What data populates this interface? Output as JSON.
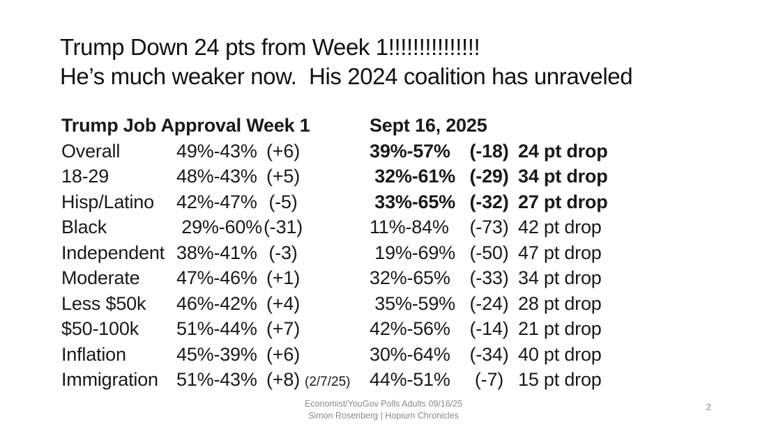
{
  "slide": {
    "title": {
      "line1": "Trump Down 24 pts from Week 1!!!!!!!!!!!!!!!",
      "line2": "He’s much weaker now.  His 2024 coalition has unraveled"
    },
    "table": {
      "left_header": "Trump Job Approval Week 1",
      "right_header": "Sept 16, 2025",
      "rows": [
        {
          "label": "Overall",
          "week1": "49%-43%",
          "week1_margin": "(+6)",
          "note": "",
          "sept": "39%-57%",
          "sept_margin": "(-18)",
          "drop": "24 pt drop",
          "emphasis": true
        },
        {
          "label": "18-29",
          "week1": "48%-43%",
          "week1_margin": "(+5)",
          "note": "",
          "sept": " 32%-61%",
          "sept_margin": "(-29)",
          "drop": "34 pt drop",
          "emphasis": true
        },
        {
          "label": "Hisp/Latino",
          "week1": "42%-47%",
          "week1_margin": "(-5)",
          "note": "",
          "sept": " 33%-65%",
          "sept_margin": "(-32)",
          "drop": "27 pt drop",
          "emphasis": true
        },
        {
          "label": "Black",
          "week1": " 29%-60%",
          "week1_margin": "(-31)",
          "note": "",
          "sept": "11%-84%",
          "sept_margin": "(-73)",
          "drop": "42 pt drop",
          "emphasis": false
        },
        {
          "label": "Independent",
          "week1": "38%-41%",
          "week1_margin": "(-3)",
          "note": "",
          "sept": " 19%-69%",
          "sept_margin": "(-50)",
          "drop": "47 pt drop",
          "emphasis": false
        },
        {
          "label": "Moderate",
          "week1": "47%-46%",
          "week1_margin": "(+1)",
          "note": "",
          "sept": "32%-65%",
          "sept_margin": "(-33)",
          "drop": "34 pt drop",
          "emphasis": false
        },
        {
          "label": "Less $50k",
          "week1": "46%-42%",
          "week1_margin": "(+4)",
          "note": "",
          "sept": " 35%-59%",
          "sept_margin": "(-24)",
          "drop": "28 pt drop",
          "emphasis": false
        },
        {
          "label": "$50-100k",
          "week1": "51%-44%",
          "week1_margin": "(+7)",
          "note": "",
          "sept": "42%-56%",
          "sept_margin": "(-14)",
          "drop": "21 pt drop",
          "emphasis": false
        },
        {
          "label": "Inflation",
          "week1": "45%-39%",
          "week1_margin": "(+6)",
          "note": "",
          "sept": "30%-64%",
          "sept_margin": "(-34)",
          "drop": "40 pt drop",
          "emphasis": false
        },
        {
          "label": "Immigration",
          "week1": "51%-43%",
          "week1_margin": "(+8)",
          "note": "(2/7/25)",
          "sept": "44%-51%",
          "sept_margin": "(-7)",
          "drop": "15 pt drop",
          "emphasis": false
        }
      ]
    },
    "footer": {
      "line1": "Economist/YouGov Polls Adults 09/16/25",
      "line2": "Simon Rosenberg | Hopium Chronicles",
      "page_number": "2"
    },
    "colors": {
      "background": "#ffffff",
      "text": "#191919",
      "footer_gray": "#8a8a8a"
    }
  }
}
